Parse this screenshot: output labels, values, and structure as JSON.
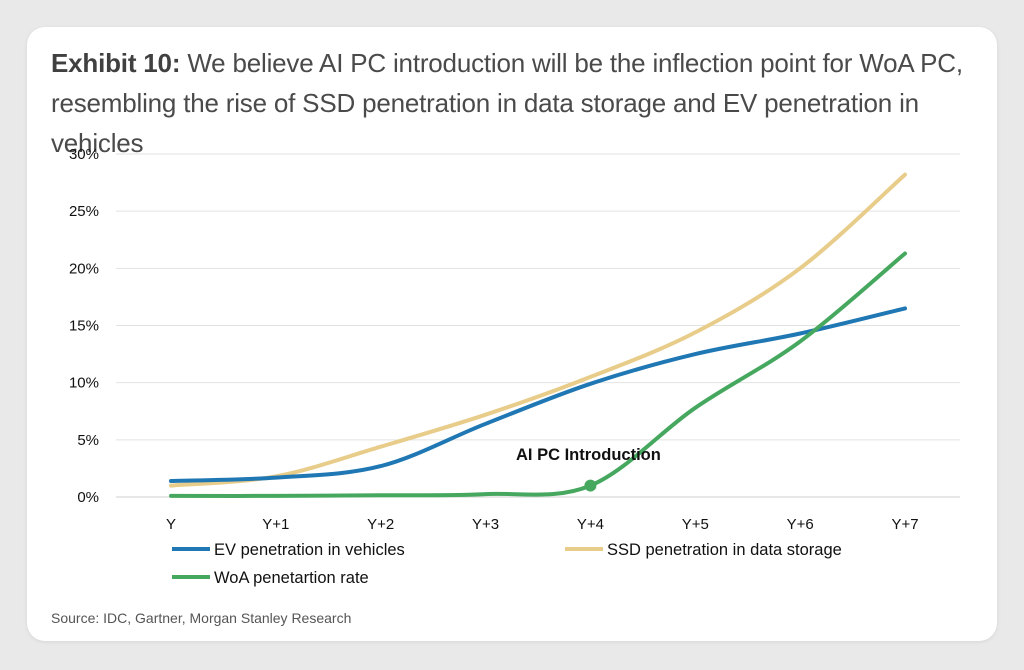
{
  "exhibit": {
    "prefix": "Exhibit 10:",
    "title_line1": "We believe AI PC introduction will be the inflection point for WoA PC,",
    "title_line2": "resembling the rise of SSD penetration in data storage and EV penetration in vehicles"
  },
  "source": "Source: IDC, Gartner, Morgan Stanley Research",
  "chart_data": {
    "type": "line",
    "title": "We believe AI PC introduction will be the inflection point for WoA PC, resembling the rise of SSD penetration in data storage and EV penetration in vehicles",
    "categories": [
      "Y",
      "Y+1",
      "Y+2",
      "Y+3",
      "Y+4",
      "Y+5",
      "Y+6",
      "Y+7"
    ],
    "ylim": [
      0,
      30
    ],
    "yticks": [
      "0%",
      "5%",
      "10%",
      "15%",
      "20%",
      "25%",
      "30%"
    ],
    "ytick_values": [
      0,
      5,
      10,
      15,
      20,
      25,
      30
    ],
    "grid": true,
    "legend_position": "bottom",
    "series": [
      {
        "name": "EV penetration in vehicles",
        "color": "#1f77b4",
        "values": [
          1.4,
          1.7,
          2.7,
          6.4,
          9.9,
          12.5,
          14.3,
          16.5
        ]
      },
      {
        "name": "SSD penetration in data storage",
        "color": "#e8cc8a",
        "values": [
          1.0,
          1.8,
          4.4,
          7.2,
          10.5,
          14.4,
          20.0,
          28.2
        ]
      },
      {
        "name": "WoA penetartion rate",
        "color": "#46a85f",
        "values": [
          0.1,
          0.1,
          0.15,
          0.25,
          1.0,
          7.8,
          13.6,
          21.3
        ]
      }
    ],
    "annotation": {
      "label": "AI PC Introduction",
      "category": "Y+4",
      "value": 1.0,
      "series": "WoA penetartion rate"
    }
  }
}
